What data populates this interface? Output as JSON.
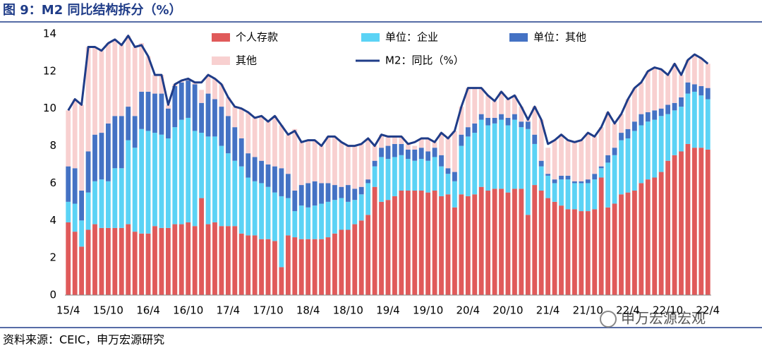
{
  "chart_data": {
    "type": "bar",
    "title": "图 9：M2 同比结构拆分（%）",
    "source": "资料来源：CEIC，申万宏源研究",
    "watermark": "申万宏源宏观",
    "categories": [
      "15/4",
      null,
      null,
      null,
      null,
      null,
      "15/10",
      null,
      null,
      null,
      null,
      null,
      "16/4",
      null,
      null,
      null,
      null,
      null,
      "16/10",
      null,
      null,
      null,
      null,
      null,
      "17/4",
      null,
      null,
      null,
      null,
      null,
      "17/10",
      null,
      null,
      null,
      null,
      null,
      "18/4",
      null,
      null,
      null,
      null,
      null,
      "18/10",
      null,
      null,
      null,
      null,
      null,
      "19/4",
      null,
      null,
      null,
      null,
      null,
      "19/10",
      null,
      null,
      null,
      null,
      null,
      "20/4",
      null,
      null,
      null,
      null,
      null,
      "20/10",
      null,
      null,
      null,
      null,
      null,
      "21/4",
      null,
      null,
      null,
      null,
      null,
      "21/10",
      null,
      null,
      null,
      null,
      null,
      "22/4",
      null,
      null,
      null,
      null,
      null,
      "22/10",
      null,
      null,
      null,
      null,
      null,
      "22/4"
    ],
    "series": [
      {
        "name": "个人存款",
        "type": "bar",
        "color": "#e05a5a",
        "values": [
          3.9,
          3.4,
          2.6,
          3.5,
          3.8,
          3.6,
          3.6,
          3.6,
          3.6,
          3.8,
          3.4,
          3.3,
          3.3,
          3.7,
          3.6,
          3.6,
          3.8,
          3.8,
          3.9,
          3.7,
          5.2,
          3.8,
          3.9,
          3.7,
          3.7,
          3.7,
          3.3,
          3.2,
          3.2,
          3.0,
          3.0,
          2.9,
          1.5,
          3.2,
          3.1,
          3.0,
          3.0,
          3.0,
          3.0,
          3.1,
          3.3,
          3.5,
          3.5,
          3.8,
          4.0,
          4.3,
          5.8,
          5.0,
          5.1,
          5.3,
          5.6,
          5.6,
          5.6,
          5.6,
          5.5,
          5.6,
          5.3,
          5.4,
          4.7,
          5.4,
          5.3,
          5.4,
          5.8,
          5.6,
          5.7,
          5.7,
          5.5,
          5.7,
          5.7,
          4.3,
          5.9,
          5.6,
          5.2,
          5.0,
          4.8,
          4.6,
          4.6,
          4.5,
          4.5,
          4.6,
          6.3,
          4.7,
          4.9,
          5.4,
          5.5,
          5.6,
          6.0,
          6.2,
          6.3,
          6.6,
          7.2,
          7.5,
          7.7,
          8.1,
          7.9,
          7.9,
          7.8
        ]
      },
      {
        "name": "单位：企业",
        "type": "bar",
        "color": "#5bd3f5",
        "values": [
          1.1,
          1.5,
          1.4,
          2.0,
          2.3,
          2.6,
          2.5,
          3.2,
          3.2,
          4.5,
          4.5,
          5.6,
          5.5,
          5.0,
          5.0,
          4.8,
          5.2,
          5.6,
          5.6,
          5.1,
          3.5,
          4.7,
          4.6,
          4.3,
          3.9,
          3.5,
          3.6,
          3.1,
          2.9,
          3.0,
          2.8,
          2.6,
          3.8,
          2.0,
          1.4,
          1.8,
          1.7,
          1.8,
          1.9,
          1.9,
          1.8,
          1.7,
          1.5,
          1.3,
          1.4,
          1.7,
          1.1,
          2.4,
          2.2,
          2.1,
          1.9,
          1.7,
          1.6,
          1.7,
          1.7,
          1.8,
          1.6,
          1.1,
          1.4,
          2.6,
          3.2,
          3.3,
          3.6,
          3.5,
          3.5,
          3.7,
          3.6,
          3.7,
          3.3,
          4.6,
          2.2,
          1.3,
          1.2,
          1.0,
          1.4,
          1.6,
          1.4,
          1.5,
          1.5,
          1.6,
          0.5,
          2.4,
          2.6,
          2.9,
          2.9,
          3.2,
          3.1,
          3.1,
          3.1,
          3.0,
          2.5,
          2.4,
          2.4,
          2.7,
          3.0,
          2.8,
          2.7
        ]
      },
      {
        "name": "单位：其他",
        "type": "bar",
        "color": "#4472c4",
        "values": [
          1.9,
          1.9,
          1.6,
          2.2,
          2.5,
          2.5,
          3.1,
          2.8,
          2.8,
          1.8,
          1.7,
          2.0,
          2.1,
          2.1,
          2.2,
          1.6,
          2.2,
          2.0,
          2.0,
          2.5,
          1.6,
          2.3,
          2.0,
          2.1,
          2.0,
          1.8,
          1.5,
          1.3,
          1.3,
          1.2,
          1.2,
          1.4,
          1.5,
          1.3,
          1.1,
          1.1,
          1.3,
          1.3,
          1.1,
          1.0,
          0.8,
          0.6,
          0.9,
          0.6,
          0.4,
          0.2,
          0.3,
          0.5,
          0.7,
          0.7,
          0.6,
          0.5,
          0.6,
          0.6,
          0.5,
          0.5,
          0.6,
          0.3,
          0.5,
          0.6,
          0.5,
          0.5,
          0.3,
          0.4,
          0.3,
          0.3,
          0.4,
          0.3,
          0.3,
          0.4,
          0.5,
          0.3,
          0.1,
          0.2,
          0.2,
          0.2,
          0.1,
          0.1,
          0.2,
          0.3,
          0.1,
          0.4,
          0.4,
          0.4,
          0.5,
          0.5,
          0.6,
          0.5,
          0.5,
          0.4,
          0.5,
          0.4,
          0.5,
          0.6,
          0.4,
          0.5,
          0.6
        ]
      },
      {
        "name": "其他",
        "type": "bar",
        "color": "#f8d0d0",
        "values": [
          3.0,
          3.7,
          4.6,
          5.6,
          4.7,
          4.4,
          4.3,
          4.1,
          3.8,
          3.8,
          3.7,
          2.6,
          1.9,
          1.0,
          1.0,
          0.2,
          0.1,
          0.1,
          0.1,
          0.1,
          0.7,
          1.0,
          1.1,
          1.2,
          1.0,
          1.1,
          1.6,
          2.2,
          2.1,
          2.4,
          2.3,
          2.7,
          2.3,
          2.1,
          3.3,
          2.3,
          2.3,
          2.2,
          2.0,
          2.5,
          2.6,
          2.4,
          2.1,
          2.3,
          2.3,
          2.2,
          0.8,
          0.7,
          0.5,
          0.4,
          0.4,
          0.3,
          0.2,
          0.5,
          0.7,
          0.3,
          1.2,
          1.6,
          2.2,
          1.5,
          2.1,
          1.9,
          1.4,
          1.2,
          0.9,
          1.2,
          1.0,
          1.0,
          0.8,
          0.1,
          1.5,
          2.2,
          1.4,
          2.1,
          2.2,
          1.9,
          2.1,
          2.2,
          2.5,
          2.0,
          2.1,
          2.3,
          1.3,
          1.0,
          1.6,
          1.8,
          1.7,
          2.2,
          2.3,
          2.1,
          1.6,
          2.1,
          1.2,
          1.2,
          1.6,
          1.5,
          1.3
        ]
      },
      {
        "name": "M2：同比（%）",
        "type": "line",
        "color": "#1f3c88",
        "values": [
          9.9,
          10.5,
          10.2,
          13.3,
          13.3,
          13.1,
          13.5,
          13.7,
          13.4,
          13.9,
          13.3,
          13.4,
          12.8,
          11.8,
          11.8,
          10.2,
          11.3,
          11.5,
          11.6,
          11.4,
          11.4,
          11.8,
          11.6,
          11.3,
          10.6,
          10.1,
          10.0,
          9.8,
          9.5,
          9.6,
          9.3,
          9.6,
          9.1,
          8.6,
          8.8,
          8.2,
          8.3,
          8.3,
          8.0,
          8.5,
          8.5,
          8.2,
          8.0,
          8.0,
          8.1,
          8.4,
          8.0,
          8.6,
          8.5,
          8.5,
          8.5,
          8.1,
          8.2,
          8.4,
          8.4,
          8.2,
          8.7,
          8.4,
          8.8,
          10.1,
          11.1,
          11.1,
          11.1,
          10.7,
          10.4,
          10.9,
          10.5,
          10.7,
          10.1,
          9.4,
          10.1,
          9.4,
          8.1,
          8.3,
          8.6,
          8.3,
          8.2,
          8.3,
          8.7,
          8.5,
          9.0,
          9.8,
          9.2,
          9.7,
          10.5,
          11.1,
          11.4,
          12.0,
          12.2,
          12.1,
          11.8,
          12.4,
          11.8,
          12.6,
          12.9,
          12.7,
          12.4
        ]
      }
    ],
    "ylim": [
      0,
      14
    ],
    "yticks": [
      0,
      2,
      4,
      6,
      8,
      10,
      12,
      14
    ],
    "grid": false
  }
}
